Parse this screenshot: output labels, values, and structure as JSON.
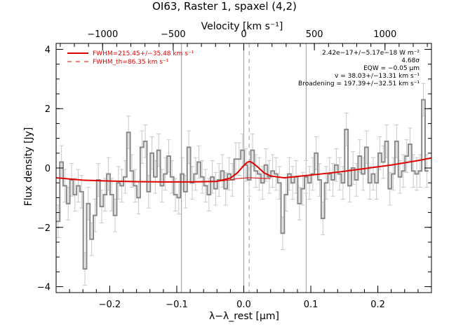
{
  "chart_data": {
    "type": "line",
    "title": "OI63, Raster 1, spaxel (4,2)",
    "xlabel": "λ−λ_rest [μm]",
    "ylabel": "Flux density [Jy]",
    "top_xlabel": "Velocity [km s⁻¹]",
    "xlim": [
      -0.28,
      0.28
    ],
    "ylim": [
      -4.2,
      4.2
    ],
    "xticks": [
      -0.2,
      -0.1,
      0.0,
      0.1,
      0.2
    ],
    "xtick_labels": [
      "−0.2",
      "−0.1",
      "0.0",
      "0.1",
      "0.2"
    ],
    "yticks": [
      -4,
      -2,
      0,
      2,
      4
    ],
    "ytick_labels": [
      "−4",
      "−2",
      "0",
      "2",
      "4"
    ],
    "top_ticks_velocity": [
      -1000,
      -500,
      0,
      500,
      1000
    ],
    "top_tick_labels": [
      "−1000",
      "−500",
      "0",
      "500",
      "1000"
    ],
    "velocity_per_micron": 4747,
    "vertical_lines_x": [
      -0.093,
      0.0,
      0.093
    ],
    "dashed_line_x": 0.008,
    "legend": [
      {
        "label": "FWHM=215.45+/−35.48 km s⁻¹",
        "style": "solid",
        "color": "#e00000"
      },
      {
        "label": "FWHM_th=86.35 km s⁻¹",
        "style": "dashed",
        "color": "#e00000"
      }
    ],
    "annotations": [
      "2.42e−17+/−5.17e−18 W m⁻²",
      "4.68σ",
      "EQW = −0.05 μm",
      "v = 38.03+/−13.31 km s⁻¹",
      "Broadening = 197.39+/−32.51 km s⁻¹"
    ],
    "series": [
      {
        "style": "histogram",
        "color": "#888888",
        "x": [
          -0.277,
          -0.272,
          -0.267,
          -0.262,
          -0.257,
          -0.252,
          -0.247,
          -0.242,
          -0.237,
          -0.232,
          -0.227,
          -0.222,
          -0.217,
          -0.212,
          -0.207,
          -0.202,
          -0.197,
          -0.192,
          -0.187,
          -0.182,
          -0.177,
          -0.172,
          -0.167,
          -0.162,
          -0.157,
          -0.152,
          -0.147,
          -0.142,
          -0.137,
          -0.132,
          -0.127,
          -0.122,
          -0.117,
          -0.112,
          -0.107,
          -0.102,
          -0.097,
          -0.092,
          -0.087,
          -0.082,
          -0.077,
          -0.072,
          -0.067,
          -0.062,
          -0.057,
          -0.052,
          -0.047,
          -0.042,
          -0.037,
          -0.032,
          -0.027,
          -0.022,
          -0.017,
          -0.012,
          -0.007,
          -0.002,
          0.003,
          0.008,
          0.013,
          0.018,
          0.023,
          0.028,
          0.033,
          0.038,
          0.043,
          0.048,
          0.053,
          0.058,
          0.063,
          0.068,
          0.073,
          0.078,
          0.083,
          0.088,
          0.093,
          0.098,
          0.103,
          0.108,
          0.113,
          0.118,
          0.123,
          0.128,
          0.133,
          0.138,
          0.143,
          0.148,
          0.153,
          0.158,
          0.163,
          0.168,
          0.173,
          0.178,
          0.183,
          0.188,
          0.193,
          0.198,
          0.203,
          0.208,
          0.213,
          0.218,
          0.223,
          0.228,
          0.233,
          0.238,
          0.243,
          0.248,
          0.253,
          0.258,
          0.263,
          0.268,
          0.273
        ],
        "y": [
          -1.8,
          0.2,
          -0.6,
          -1.2,
          -0.4,
          -0.9,
          -0.6,
          -0.8,
          -3.4,
          -1.2,
          -2.4,
          -1.6,
          -0.4,
          -1.3,
          -0.9,
          -0.2,
          -0.9,
          -1.6,
          -0.5,
          -0.6,
          -0.3,
          1.2,
          -0.1,
          -0.6,
          -1.0,
          0.7,
          0.9,
          -0.8,
          0.5,
          -0.3,
          0.6,
          -0.6,
          -0.2,
          0.4,
          -0.3,
          -0.9,
          -1.0,
          -0.2,
          -0.8,
          0.7,
          -0.5,
          -0.2,
          0.2,
          -0.3,
          -0.6,
          -0.9,
          -0.3,
          -0.7,
          -0.4,
          -0.1,
          -0.7,
          -0.2,
          -0.4,
          0.3,
          0.3,
          0.6,
          0.1,
          -0.4,
          0.6,
          -0.1,
          -0.2,
          -0.5,
          0.1,
          -0.3,
          -0.1,
          -0.2,
          -0.5,
          -2.2,
          -0.9,
          -0.2,
          -0.5,
          -0.3,
          -1.2,
          -0.7,
          -0.3,
          -0.5,
          -0.2,
          0.5,
          -0.4,
          -1.7,
          -0.5,
          -0.2,
          -0.4,
          0.1,
          -0.2,
          -0.5,
          1.3,
          -0.6,
          0.0,
          -0.4,
          0.4,
          -0.2,
          0.7,
          -0.5,
          -0.2,
          -0.5,
          0.5,
          0.2,
          0.9,
          -0.7,
          -0.2,
          0.9,
          -0.3,
          -0.1,
          0.4,
          0.8,
          -0.1,
          -0.2,
          -0.1,
          2.3,
          -0.1
        ],
        "err": 0.55
      },
      {
        "style": "fit",
        "color": "#e00000",
        "x": [
          -0.28,
          -0.24,
          -0.2,
          -0.16,
          -0.12,
          -0.08,
          -0.04,
          -0.02,
          -0.01,
          0.0,
          0.005,
          0.008,
          0.012,
          0.02,
          0.03,
          0.04,
          0.06,
          0.1,
          0.14,
          0.18,
          0.22,
          0.26,
          0.28
        ],
        "y": [
          -0.33,
          -0.41,
          -0.44,
          -0.46,
          -0.47,
          -0.47,
          -0.45,
          -0.34,
          -0.17,
          0.08,
          0.19,
          0.22,
          0.19,
          0.05,
          -0.16,
          -0.27,
          -0.33,
          -0.24,
          -0.14,
          -0.02,
          0.1,
          0.25,
          0.34
        ]
      },
      {
        "style": "thin-fit",
        "color": "#e00000",
        "x": [
          -0.04,
          -0.02,
          -0.01,
          0.0,
          0.005,
          0.008,
          0.012,
          0.02,
          0.03,
          0.04
        ],
        "y": [
          -0.45,
          -0.4,
          -0.36,
          -0.34,
          -0.33,
          -0.33,
          -0.33,
          -0.34,
          -0.35,
          -0.36
        ]
      }
    ]
  }
}
